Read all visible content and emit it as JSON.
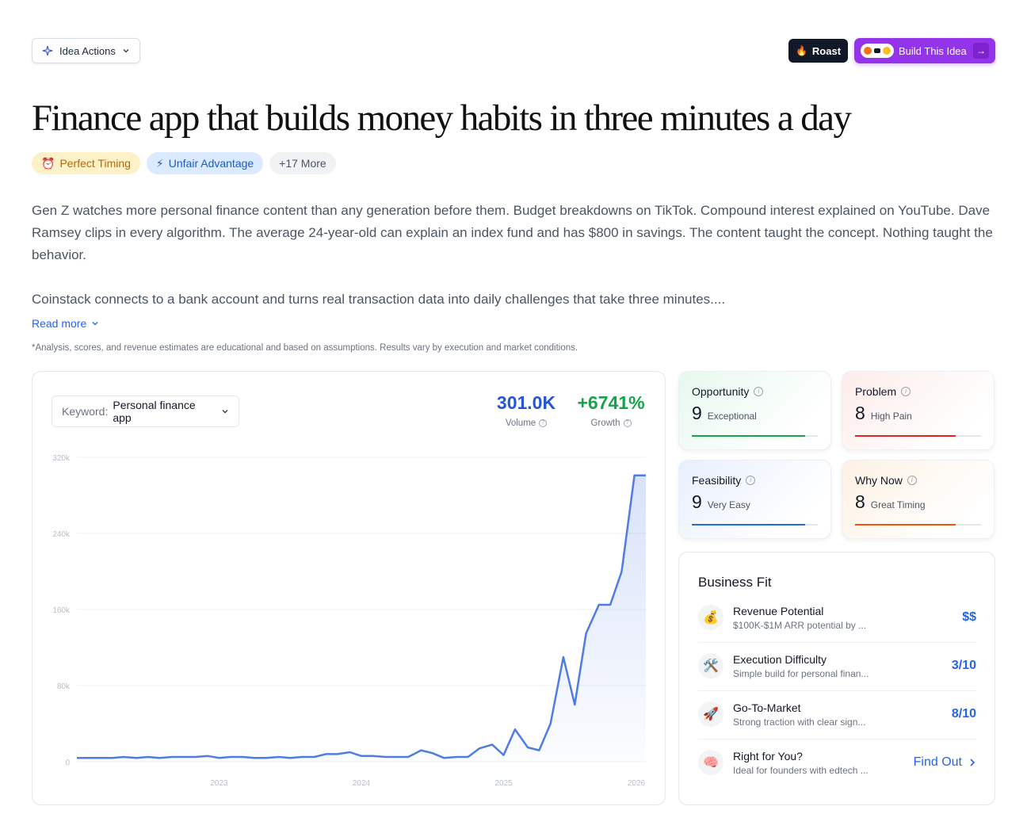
{
  "header": {
    "idea_actions_label": "Idea Actions",
    "roast_label": "Roast",
    "build_label": "Build This Idea"
  },
  "title": "Finance app that builds money habits in three minutes a day",
  "tags": [
    {
      "label": "Perfect Timing",
      "icon": "alarm-clock-icon"
    },
    {
      "label": "Unfair Advantage",
      "icon": "lightning-icon"
    },
    {
      "label": "+17 More"
    }
  ],
  "description": {
    "p1": "Gen Z watches more personal finance content than any generation before them. Budget breakdowns on TikTok. Compound interest explained on YouTube. Dave Ramsey clips in every algorithm. The average 24-year-old can explain an index fund and has $800 in savings. The content taught the concept. Nothing taught the behavior.",
    "p2": "Coinstack connects to a bank account and turns real transaction data into daily challenges that take three minutes....",
    "read_more": "Read more"
  },
  "disclaimer": "*Analysis, scores, and revenue estimates are educational and based on assumptions. Results vary by execution and market conditions.",
  "trend": {
    "keyword_label": "Keyword:",
    "keyword_value": "Personal finance app",
    "volume_value": "301.0K",
    "volume_label": "Volume",
    "growth_value": "+6741%",
    "growth_label": "Growth"
  },
  "chart_data": {
    "type": "area",
    "title": "",
    "xlabel": "",
    "ylabel": "",
    "ylim": [
      0,
      320000
    ],
    "y_ticks": [
      "0",
      "80k",
      "160k",
      "240k",
      "320k"
    ],
    "x_ticks": [
      {
        "label": "2023",
        "x": 2023.0
      },
      {
        "label": "2024",
        "x": 2024.0
      },
      {
        "label": "2025",
        "x": 2025.0
      },
      {
        "label": "2026",
        "x": 2026.0
      }
    ],
    "grid": true,
    "legend": "none",
    "line_color": "#4f7be3",
    "series": [
      {
        "x": [
          2022.0,
          2022.08,
          2022.17,
          2022.25,
          2022.33,
          2022.42,
          2022.5,
          2022.58,
          2022.67,
          2022.75,
          2022.83,
          2022.92,
          2023.0,
          2023.08,
          2023.17,
          2023.25,
          2023.33,
          2023.42,
          2023.5,
          2023.58,
          2023.67,
          2023.75,
          2023.83,
          2023.92,
          2024.0,
          2024.08,
          2024.17,
          2024.25,
          2024.33,
          2024.42,
          2024.5,
          2024.58,
          2024.67,
          2024.75,
          2024.83,
          2024.92,
          2025.0,
          2025.08,
          2025.17,
          2025.25,
          2025.33,
          2025.42,
          2025.5,
          2025.58,
          2025.67,
          2025.75,
          2025.83,
          2025.92,
          2026.0
        ],
        "values": [
          4000,
          4000,
          4000,
          4000,
          5000,
          4000,
          5000,
          4000,
          5000,
          5000,
          5000,
          6000,
          4000,
          5000,
          5000,
          4000,
          4000,
          5000,
          4000,
          5000,
          5000,
          8000,
          8000,
          10000,
          6000,
          6000,
          5000,
          5000,
          5000,
          12000,
          9000,
          4000,
          5000,
          5000,
          14000,
          18000,
          7000,
          34000,
          15000,
          12000,
          40000,
          110000,
          60000,
          135000,
          165000,
          165000,
          200000,
          301000,
          301000
        ]
      }
    ]
  },
  "scores": {
    "opportunity": {
      "name": "Opportunity",
      "value": "9",
      "label": "Exceptional",
      "fraction": 0.9,
      "color": "#16a34a"
    },
    "problem": {
      "name": "Problem",
      "value": "8",
      "label": "High Pain",
      "fraction": 0.8,
      "color": "#dc2626"
    },
    "feasibility": {
      "name": "Feasibility",
      "value": "9",
      "label": "Very Easy",
      "fraction": 0.9,
      "color": "#1e6fd9"
    },
    "why_now": {
      "name": "Why Now",
      "value": "8",
      "label": "Great Timing",
      "fraction": 0.8,
      "color": "#ea580c"
    }
  },
  "business_fit": {
    "title": "Business Fit",
    "rows": [
      {
        "icon": "money-bag-icon",
        "title": "Revenue Potential",
        "desc": "$100K-$1M ARR potential by ...",
        "value": "$$"
      },
      {
        "icon": "tools-icon",
        "title": "Execution Difficulty",
        "desc": "Simple build for personal finan...",
        "value": "3/10"
      },
      {
        "icon": "rocket-icon",
        "title": "Go-To-Market",
        "desc": "Strong traction with clear sign...",
        "value": "8/10"
      },
      {
        "icon": "brain-icon",
        "title": "Right for You?",
        "desc": "Ideal for founders with edtech ...",
        "value": "Find Out"
      }
    ]
  }
}
